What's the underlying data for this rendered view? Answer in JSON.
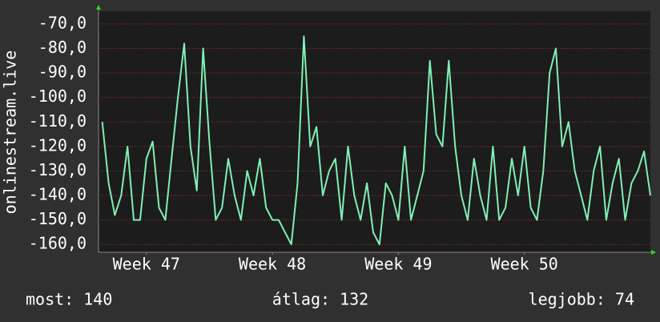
{
  "chart_data": {
    "type": "line",
    "ylabel": "onlinestream.live",
    "x": [
      47.15,
      47.2,
      47.25,
      47.3,
      47.35,
      47.4,
      47.45,
      47.5,
      47.55,
      47.6,
      47.65,
      47.7,
      47.75,
      47.8,
      47.85,
      47.9,
      47.95,
      48,
      48.05,
      48.1,
      48.15,
      48.2,
      48.25,
      48.3,
      48.35,
      48.4,
      48.45,
      48.5,
      48.55,
      48.6,
      48.65,
      48.7,
      48.75,
      48.8,
      48.85,
      48.9,
      48.95,
      49,
      49.05,
      49.1,
      49.15,
      49.2,
      49.25,
      49.3,
      49.35,
      49.4,
      49.45,
      49.5,
      49.55,
      49.6,
      49.65,
      49.7,
      49.75,
      49.8,
      49.85,
      49.9,
      49.95,
      50,
      50.05,
      50.1,
      50.15,
      50.2,
      50.25,
      50.3,
      50.35,
      50.4,
      50.45,
      50.5,
      50.55,
      50.6,
      50.65,
      50.7,
      50.75,
      50.8,
      50.85,
      50.9,
      50.95,
      51,
      51.05,
      51.1,
      51.15,
      51.2,
      51.25,
      51.3,
      51.35,
      51.4,
      51.45,
      51.5
    ],
    "values": [
      -110,
      -135,
      -148,
      -140,
      -120,
      -150,
      -150,
      -125,
      -118,
      -145,
      -150,
      -125,
      -100,
      -78,
      -120,
      -138,
      -80,
      -118,
      -150,
      -145,
      -125,
      -140,
      -150,
      -130,
      -140,
      -125,
      -145,
      -150,
      -150,
      -155,
      -160,
      -135,
      -75,
      -120,
      -112,
      -140,
      -130,
      -125,
      -150,
      -120,
      -140,
      -150,
      -135,
      -155,
      -160,
      -135,
      -140,
      -150,
      -120,
      -150,
      -140,
      -130,
      -85,
      -115,
      -120,
      -85,
      -120,
      -140,
      -150,
      -125,
      -140,
      -150,
      -120,
      -150,
      -145,
      -125,
      -140,
      -120,
      -145,
      -150,
      -130,
      -90,
      -80,
      -120,
      -110,
      -130,
      -140,
      -150,
      -130,
      -120,
      -150,
      -135,
      -125,
      -150,
      -135,
      -130,
      -122,
      -140
    ],
    "color": "#80f0b4",
    "xlim": [
      47.12,
      51.5
    ],
    "xticks": [
      {
        "value": 47.5,
        "label": "Week 47"
      },
      {
        "value": 48.5,
        "label": "Week 48"
      },
      {
        "value": 49.5,
        "label": "Week 49"
      },
      {
        "value": 50.5,
        "label": "Week 50"
      }
    ],
    "ylim": [
      -163.2,
      -64.8
    ],
    "yticks": [
      {
        "value": -70,
        "label": "-70,0"
      },
      {
        "value": -80,
        "label": "-80,0"
      },
      {
        "value": -90,
        "label": "-90,0"
      },
      {
        "value": -100,
        "label": "-100,0"
      },
      {
        "value": -110,
        "label": "-110,0"
      },
      {
        "value": -120,
        "label": "-120,0"
      },
      {
        "value": -130,
        "label": "-130,0"
      },
      {
        "value": -140,
        "label": "-140,0"
      },
      {
        "value": -150,
        "label": "-150,0"
      },
      {
        "value": -160,
        "label": "-160,0"
      }
    ],
    "grid": true,
    "annotations": [
      "most: 140",
      "átlag: 132",
      "legjobb: 74"
    ]
  }
}
